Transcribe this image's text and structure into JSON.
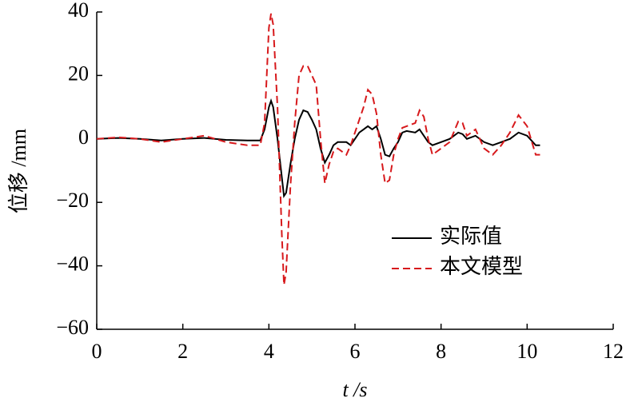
{
  "chart_data": {
    "type": "line",
    "xlabel": "t /s",
    "ylabel": "位移 /mm",
    "x": [
      0,
      0.5,
      1,
      1.5,
      2,
      2.5,
      3,
      3.5,
      3.8,
      3.9,
      4.0,
      4.05,
      4.1,
      4.2,
      4.3,
      4.35,
      4.4,
      4.5,
      4.6,
      4.7,
      4.8,
      4.9,
      5.0,
      5.1,
      5.2,
      5.3,
      5.4,
      5.5,
      5.6,
      5.8,
      5.9,
      6.0,
      6.1,
      6.2,
      6.3,
      6.4,
      6.5,
      6.6,
      6.7,
      6.8,
      6.9,
      7.0,
      7.1,
      7.2,
      7.4,
      7.5,
      7.6,
      7.7,
      7.8,
      8.0,
      8.2,
      8.4,
      8.5,
      8.6,
      8.8,
      9.0,
      9.2,
      9.4,
      9.6,
      9.8,
      10.0,
      10.2,
      10.3
    ],
    "series": [
      {
        "name": "实际值",
        "color": "#000000",
        "dash": false,
        "values": [
          0,
          0.3,
          0,
          -0.5,
          0,
          0.3,
          -0.3,
          -0.5,
          -0.5,
          3,
          10,
          12,
          10,
          0,
          -12,
          -18,
          -17,
          -8,
          0,
          6,
          9,
          8.5,
          6,
          3,
          -3,
          -7.5,
          -5,
          -2,
          -1,
          -1,
          -2,
          0,
          2,
          3,
          4,
          3,
          4,
          0,
          -5,
          -5.5,
          -3,
          -1,
          2,
          2.5,
          2,
          3,
          1,
          -1,
          -2,
          -1,
          0,
          2,
          1.5,
          0,
          1,
          -1,
          -2,
          -1,
          0,
          2,
          1,
          -2,
          -2
        ]
      },
      {
        "name": "本文模型",
        "color": "#d7191c",
        "dash": true,
        "values": [
          0,
          0.5,
          0,
          -1,
          0,
          1,
          -1,
          -2,
          -2,
          5,
          35,
          39.5,
          36,
          10,
          -30,
          -46,
          -42,
          -15,
          5,
          20,
          23,
          23,
          20,
          17,
          0,
          -14,
          -8,
          -4,
          -3,
          -5,
          -2,
          2,
          6,
          10,
          15.5,
          14,
          8,
          -5,
          -14,
          -13,
          -5,
          0,
          3.5,
          4,
          5,
          9,
          7,
          0,
          -5,
          -3,
          -1,
          5.5,
          5,
          1,
          3,
          -3,
          -5,
          -2,
          2,
          7.5,
          4,
          -5,
          -5
        ]
      }
    ],
    "xlim": [
      0,
      12
    ],
    "xticks": [
      0,
      2,
      4,
      6,
      8,
      10,
      12
    ],
    "ylim": [
      -60,
      40
    ],
    "yticks": [
      {
        "value": -60,
        "label": "−60"
      },
      {
        "value": -40,
        "label": "−40"
      },
      {
        "value": -20,
        "label": "−20"
      },
      0,
      20,
      40
    ],
    "grid": false,
    "legend_position": "right"
  }
}
